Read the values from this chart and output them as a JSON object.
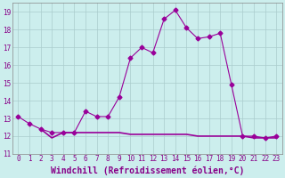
{
  "xlabel": "Windchill (Refroidissement éolien,°C)",
  "background_color": "#cceeed",
  "grid_color": "#aacccc",
  "line1_x": [
    0,
    1,
    2,
    3,
    4,
    5,
    6,
    7,
    8,
    9,
    10,
    11,
    12,
    13,
    14,
    15,
    16,
    17,
    18,
    19,
    20,
    21,
    22,
    23
  ],
  "line1_y": [
    13.1,
    12.7,
    12.4,
    12.2,
    12.2,
    12.2,
    13.4,
    13.1,
    13.1,
    14.2,
    16.4,
    17.0,
    16.7,
    18.6,
    19.1,
    18.1,
    17.5,
    17.6,
    17.8,
    14.9,
    12.0,
    12.0,
    11.9,
    12.0
  ],
  "line2_x": [
    2,
    3,
    4,
    5,
    6,
    7,
    8,
    9,
    10,
    11,
    12,
    13,
    14,
    15,
    16,
    17,
    18,
    19,
    20,
    21,
    22,
    23
  ],
  "line2_y": [
    12.4,
    11.9,
    12.2,
    12.2,
    12.2,
    12.2,
    12.2,
    12.2,
    12.1,
    12.1,
    12.1,
    12.1,
    12.1,
    12.1,
    12.0,
    12.0,
    12.0,
    12.0,
    12.0,
    11.9,
    11.9,
    11.9
  ],
  "line_color": "#990099",
  "xlim_min": -0.5,
  "xlim_max": 23.5,
  "ylim_min": 11,
  "ylim_max": 19.5,
  "yticks": [
    11,
    12,
    13,
    14,
    15,
    16,
    17,
    18,
    19
  ],
  "xticks": [
    0,
    1,
    2,
    3,
    4,
    5,
    6,
    7,
    8,
    9,
    10,
    11,
    12,
    13,
    14,
    15,
    16,
    17,
    18,
    19,
    20,
    21,
    22,
    23
  ],
  "tick_fontsize": 5.5,
  "label_fontsize": 7.0,
  "marker_size": 2.5,
  "line_width": 0.8
}
